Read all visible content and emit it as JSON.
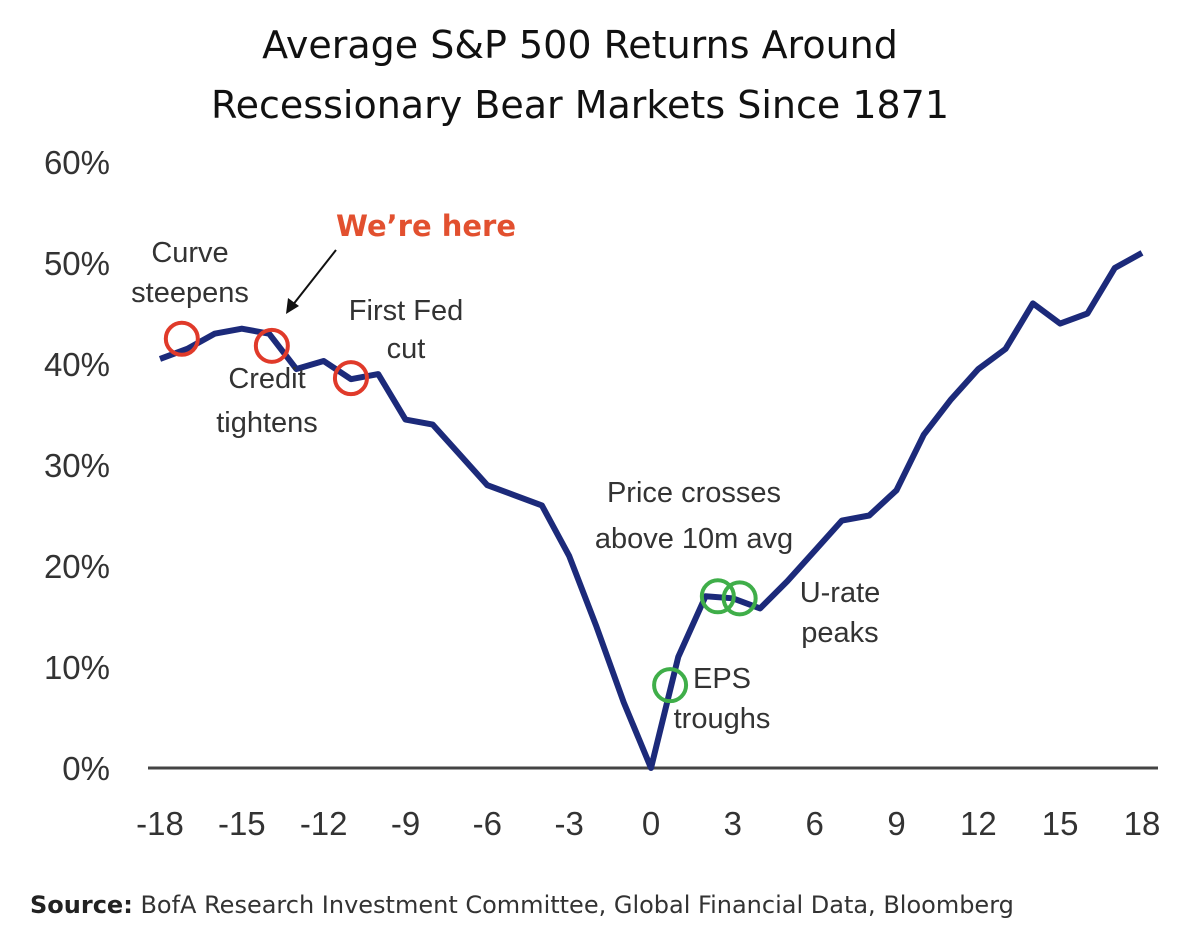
{
  "chart_data": {
    "type": "line",
    "title": [
      "Average S&P 500 Returns Around",
      "Recessionary Bear Markets Since 1871"
    ],
    "x": [
      -18,
      -17,
      -16,
      -15,
      -14,
      -13,
      -12,
      -11,
      -10,
      -9,
      -8,
      -7,
      -6,
      -5,
      -4,
      -3,
      -2,
      -1,
      0,
      1,
      2,
      3,
      4,
      5,
      6,
      7,
      8,
      9,
      10,
      11,
      12,
      13,
      14,
      15,
      16,
      17,
      18
    ],
    "series": [
      {
        "name": "Average S&P 500 return",
        "color": "#1c2a7a",
        "values": [
          40.5,
          41.5,
          43,
          43.5,
          43,
          39.5,
          40.3,
          38.5,
          39,
          34.5,
          34,
          31,
          28,
          27,
          26,
          21,
          14,
          6.5,
          0,
          11,
          17,
          16.8,
          15.8,
          18.5,
          21.5,
          24.5,
          25,
          27.5,
          33,
          36.5,
          39.5,
          41.5,
          46,
          44,
          45,
          49.5,
          51
        ]
      }
    ],
    "xlim": [
      -18,
      18
    ],
    "xticks": [
      -18,
      -15,
      -12,
      -9,
      -6,
      -3,
      0,
      3,
      6,
      9,
      12,
      15,
      18
    ],
    "ylim": [
      0,
      60
    ],
    "yticks": [
      {
        "value": 0,
        "label": "0%"
      },
      {
        "value": 10,
        "label": "10%"
      },
      {
        "value": 20,
        "label": "20%"
      },
      {
        "value": 30,
        "label": "30%"
      },
      {
        "value": 40,
        "label": "40%"
      },
      {
        "value": 50,
        "label": "50%"
      },
      {
        "value": 60,
        "label": "60%"
      }
    ],
    "annotations": [
      {
        "text": [
          "Curve",
          "steepens"
        ],
        "x": -17.2,
        "y": 42.5,
        "color": "#e03a2a"
      },
      {
        "text": [
          "Credit",
          "tightens"
        ],
        "x": -13.9,
        "y": 41.8,
        "color": "#e03a2a"
      },
      {
        "text": [
          "First Fed",
          "cut"
        ],
        "x": -11,
        "y": 38.6,
        "color": "#e03a2a"
      },
      {
        "text": [
          "EPS",
          "troughs"
        ],
        "x": 0.7,
        "y": 8.2,
        "color": "#3fae49"
      },
      {
        "text": [
          "Price crosses",
          "above 10m avg"
        ],
        "x": 2.45,
        "y": 17,
        "color": "#3fae49"
      },
      {
        "text": [
          "U-rate",
          "peaks"
        ],
        "x": 3.25,
        "y": 16.8,
        "color": "#3fae49"
      }
    ],
    "callout": {
      "text": "We’re here",
      "color": "#e2502f"
    },
    "source": {
      "label": "Source:",
      "text": "BofA Research Investment Committee, Global Financial Data, Bloomberg"
    }
  }
}
